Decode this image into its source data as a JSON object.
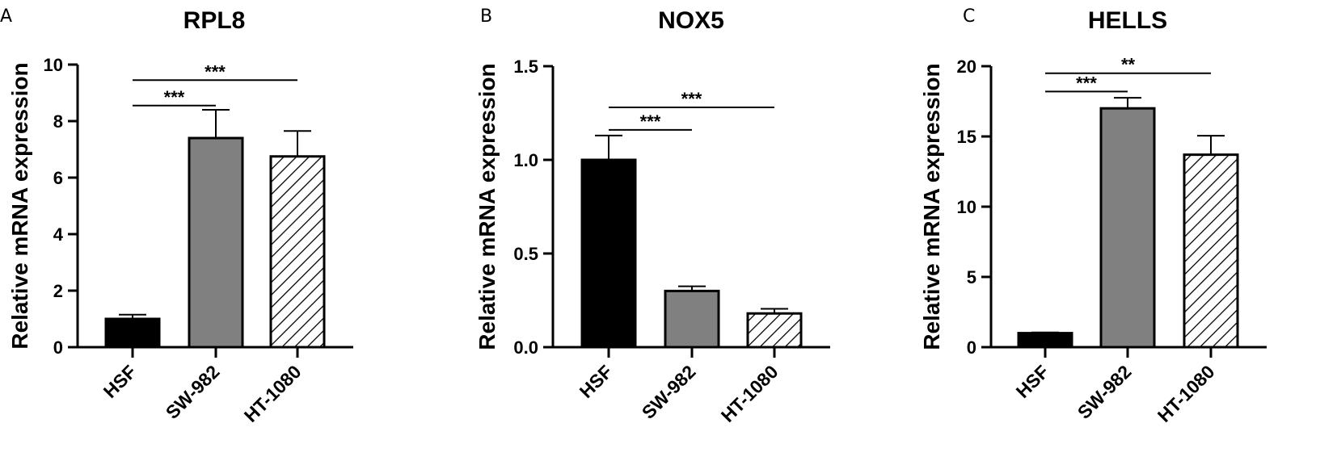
{
  "panels": [
    {
      "letter": "A"
    },
    {
      "letter": "B"
    },
    {
      "letter": "C"
    }
  ],
  "colors": {
    "HSF": "#000000",
    "SW-982": "#808080",
    "HT-1080": "hatched"
  },
  "chart_data": [
    {
      "type": "bar",
      "title": "RPL8",
      "ylabel": "Relative mRNA expression",
      "xlabel": "",
      "categories": [
        "HSF",
        "SW-982",
        "HT-1080"
      ],
      "values": [
        1.0,
        7.4,
        6.75
      ],
      "errors": [
        0.15,
        1.0,
        0.9
      ],
      "ylim": [
        0,
        10
      ],
      "yticks": [
        0,
        2,
        4,
        6,
        8,
        10
      ],
      "ytick_labels": [
        "0",
        "2",
        "4",
        "6",
        "8",
        "10"
      ],
      "significance": [
        {
          "from": "HSF",
          "to": "SW-982",
          "label": "***",
          "y": 8.55
        },
        {
          "from": "HSF",
          "to": "HT-1080",
          "label": "***",
          "y": 9.45
        }
      ],
      "grid": false,
      "legend": "none"
    },
    {
      "type": "bar",
      "title": "NOX5",
      "ylabel": "Relative mRNA expression",
      "xlabel": "",
      "categories": [
        "HSF",
        "SW-982",
        "HT-1080"
      ],
      "values": [
        1.0,
        0.3,
        0.18
      ],
      "errors": [
        0.13,
        0.025,
        0.025
      ],
      "ylim": [
        0,
        1.5
      ],
      "yticks": [
        0,
        0.5,
        1.0,
        1.5
      ],
      "ytick_labels": [
        "0.0",
        "0.5",
        "1.0",
        "1.5"
      ],
      "significance": [
        {
          "from": "HSF",
          "to": "SW-982",
          "label": "***",
          "y": 1.16
        },
        {
          "from": "HSF",
          "to": "HT-1080",
          "label": "***",
          "y": 1.28
        }
      ],
      "grid": false,
      "legend": "none"
    },
    {
      "type": "bar",
      "title": "HELLS",
      "ylabel": "Relative mRNA expression",
      "xlabel": "",
      "categories": [
        "HSF",
        "SW-982",
        "HT-1080"
      ],
      "values": [
        1.0,
        17.0,
        13.7
      ],
      "errors": [
        0.05,
        0.75,
        1.35
      ],
      "ylim": [
        0,
        20
      ],
      "yticks": [
        0,
        5,
        10,
        15,
        20
      ],
      "ytick_labels": [
        "0",
        "5",
        "10",
        "15",
        "20"
      ],
      "significance": [
        {
          "from": "HSF",
          "to": "SW-982",
          "label": "***",
          "y": 18.2
        },
        {
          "from": "HSF",
          "to": "HT-1080",
          "label": "**",
          "y": 19.5
        }
      ],
      "grid": false,
      "legend": "none"
    }
  ]
}
